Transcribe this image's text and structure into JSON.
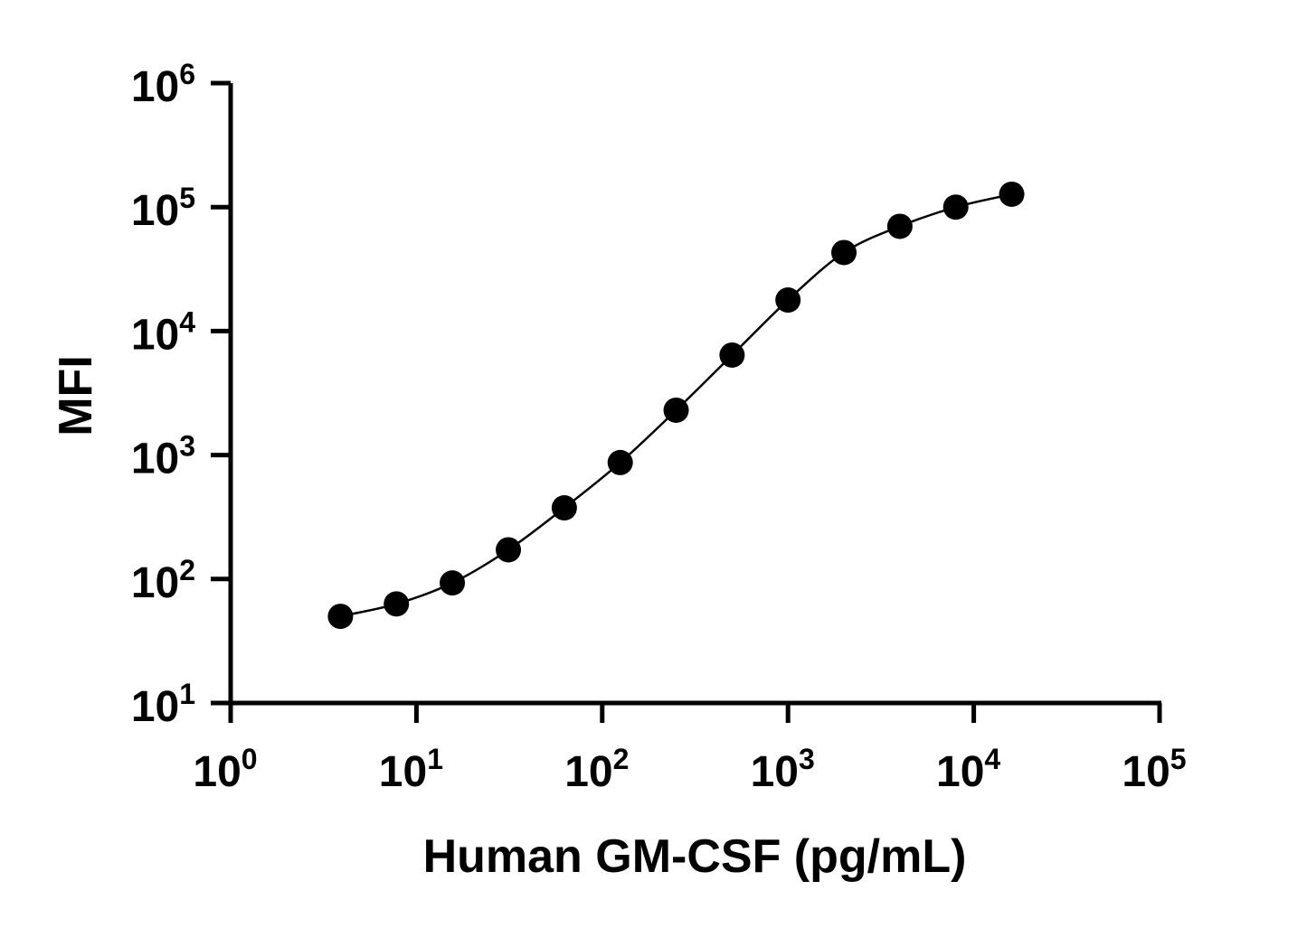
{
  "chart_data": {
    "type": "scatter",
    "xlabel": "Human GM-CSF (pg/mL)",
    "ylabel": "MFI",
    "x_scale": "log10",
    "y_scale": "log10",
    "xlim": [
      1,
      100000
    ],
    "ylim": [
      10,
      1000000
    ],
    "x_ticks": [
      {
        "base": "10",
        "exp": "0"
      },
      {
        "base": "10",
        "exp": "1"
      },
      {
        "base": "10",
        "exp": "2"
      },
      {
        "base": "10",
        "exp": "3"
      },
      {
        "base": "10",
        "exp": "4"
      },
      {
        "base": "10",
        "exp": "5"
      }
    ],
    "y_ticks": [
      {
        "base": "10",
        "exp": "1"
      },
      {
        "base": "10",
        "exp": "2"
      },
      {
        "base": "10",
        "exp": "3"
      },
      {
        "base": "10",
        "exp": "4"
      },
      {
        "base": "10",
        "exp": "5"
      },
      {
        "base": "10",
        "exp": "6"
      }
    ],
    "grid": false,
    "fit_curve": true,
    "series": [
      {
        "x": [
          3.9,
          7.8,
          15.6,
          31.25,
          62.5,
          125,
          250,
          500,
          1000,
          2000,
          4000,
          8000,
          16000
        ],
        "y": [
          50,
          63,
          93,
          172,
          375,
          870,
          2300,
          6400,
          17800,
          43000,
          70000,
          100000,
          127000
        ]
      }
    ],
    "colors": {
      "marker": "#000000",
      "line": "#000000",
      "axis": "#000000"
    }
  }
}
